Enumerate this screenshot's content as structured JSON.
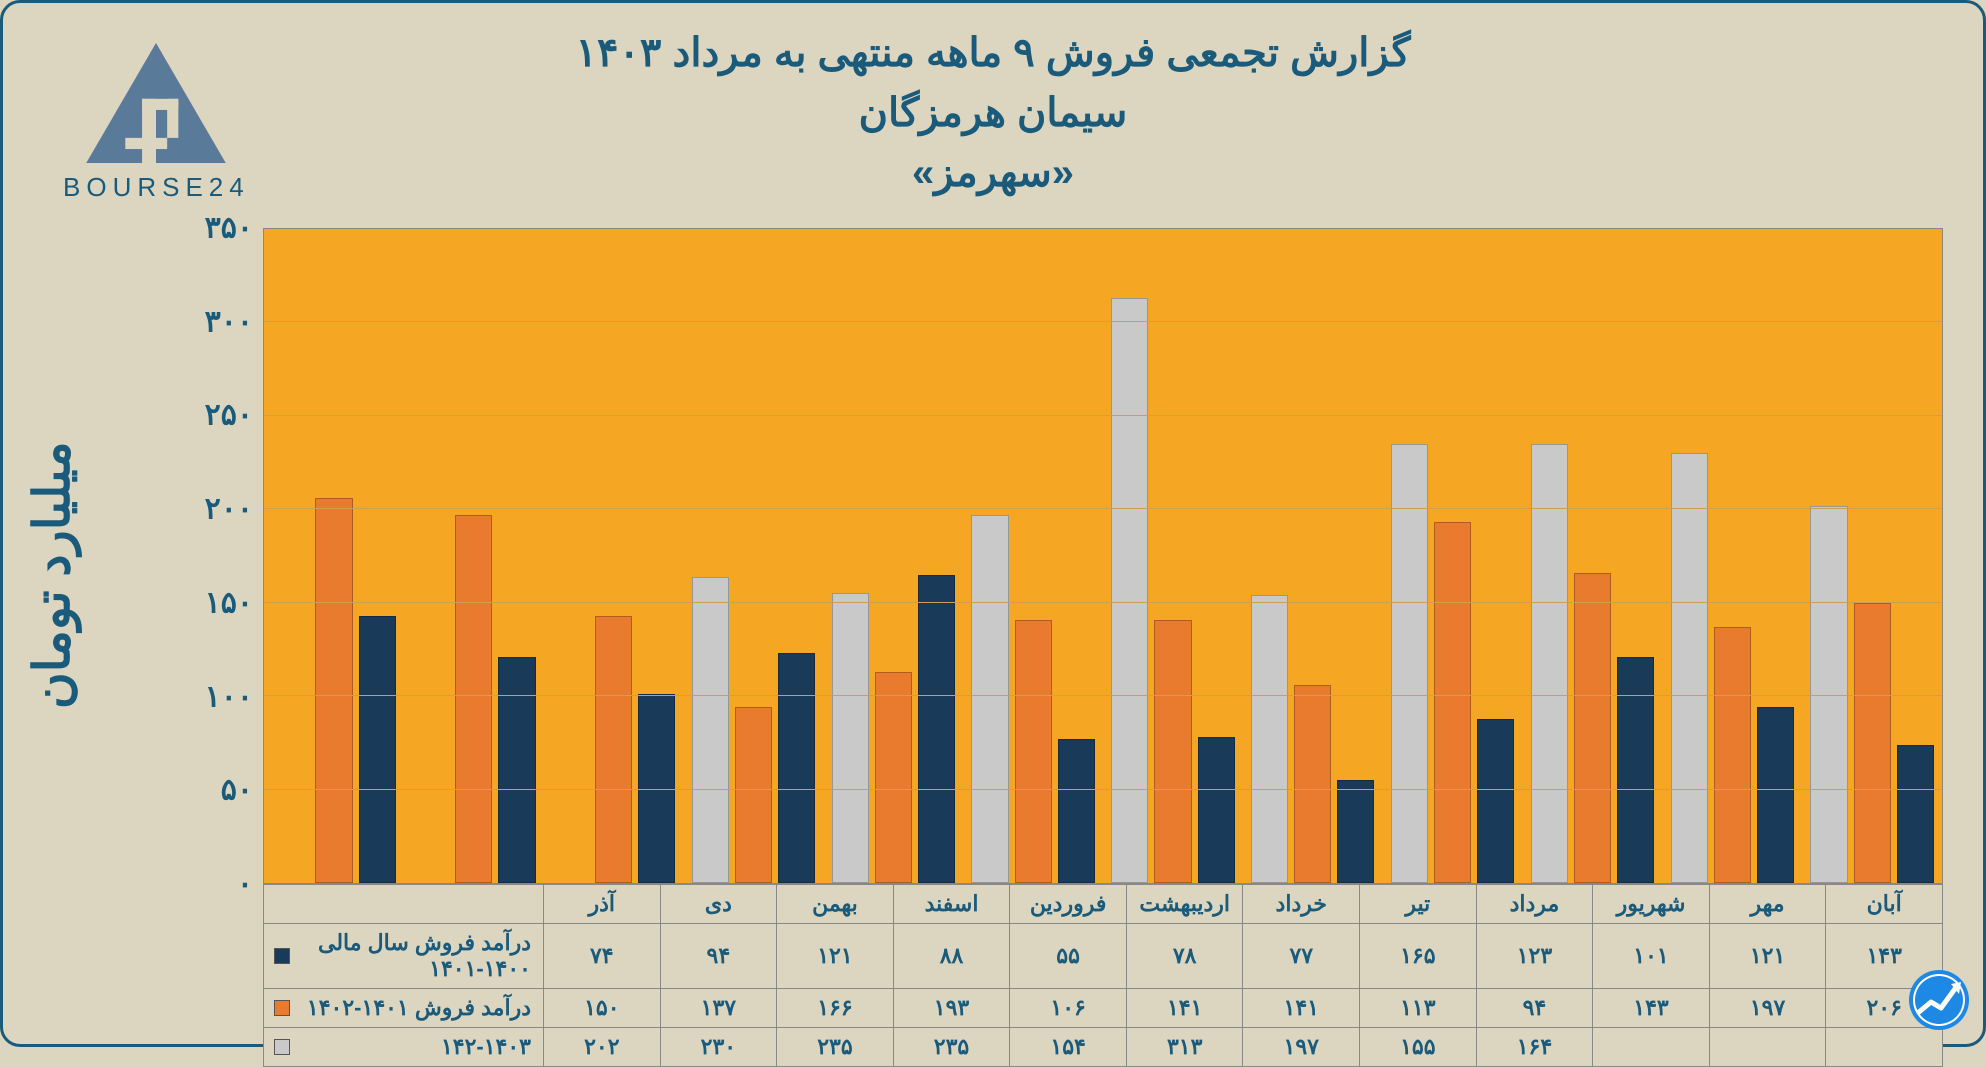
{
  "logo_text": "BOURSE24",
  "title": {
    "line1": "گزارش تجمعی فروش ۹ ماهه منتهی به مرداد ۱۴۰۳",
    "line2": "سیمان هرمزگان",
    "line3": "«سهرمز»"
  },
  "y_axis_label": "میلیارد تومان",
  "y_axis": {
    "min": 0,
    "max": 350,
    "step": 50
  },
  "y_ticks": [
    "۰",
    "۵۰",
    "۱۰۰",
    "۱۵۰",
    "۲۰۰",
    "۲۵۰",
    "۳۰۰",
    "۳۵۰"
  ],
  "categories": [
    "آذر",
    "دی",
    "بهمن",
    "اسفند",
    "فروردین",
    "اردیبهشت",
    "خرداد",
    "تیر",
    "مرداد",
    "شهریور",
    "مهر",
    "آبان"
  ],
  "series": [
    {
      "label": "درآمد فروش سال مالی ۱۴۰۰-۱۴۰۱",
      "color": "#1a3a5a",
      "values": [
        74,
        94,
        121,
        88,
        55,
        78,
        77,
        165,
        123,
        101,
        121,
        143
      ],
      "display": [
        "۷۴",
        "۹۴",
        "۱۲۱",
        "۸۸",
        "۵۵",
        "۷۸",
        "۷۷",
        "۱۶۵",
        "۱۲۳",
        "۱۰۱",
        "۱۲۱",
        "۱۴۳"
      ]
    },
    {
      "label": "درآمد فروش ۱۴۰۱-۱۴۰۲",
      "color": "#e87b2e",
      "values": [
        150,
        137,
        166,
        193,
        106,
        141,
        141,
        113,
        94,
        143,
        197,
        206
      ],
      "display": [
        "۱۵۰",
        "۱۳۷",
        "۱۶۶",
        "۱۹۳",
        "۱۰۶",
        "۱۴۱",
        "۱۴۱",
        "۱۱۳",
        "۹۴",
        "۱۴۳",
        "۱۹۷",
        "۲۰۶"
      ]
    },
    {
      "label": "۱۴۲-۱۴۰۳",
      "color": "#c9c9c9",
      "values": [
        202,
        230,
        235,
        235,
        154,
        313,
        197,
        155,
        164,
        null,
        null,
        null
      ],
      "display": [
        "۲۰۲",
        "۲۳۰",
        "۲۳۵",
        "۲۳۵",
        "۱۵۴",
        "۳۱۳",
        "۱۹۷",
        "۱۵۵",
        "۱۶۴",
        "",
        "",
        ""
      ]
    }
  ],
  "colors": {
    "page_bg": "#dcd5c0",
    "plot_bg": "#f5a623",
    "frame": "#1a5a7a",
    "grid": "#cda050",
    "text": "#1a5a7a"
  },
  "typography": {
    "title_fontsize_pt": 30,
    "axis_label_fontsize_pt": 36,
    "tick_fontsize_pt": 22,
    "table_fontsize_pt": 16
  },
  "chart": {
    "type": "bar",
    "group_gap_ratio": 0.2,
    "bar_border": "rgba(0,0,0,.25)"
  }
}
